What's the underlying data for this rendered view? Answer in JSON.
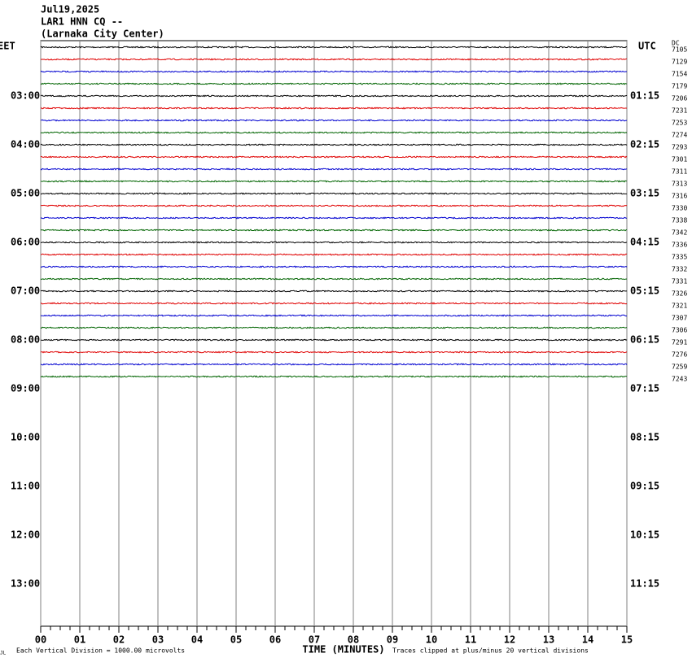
{
  "chart_data": {
    "type": "helicorder",
    "title_lines": [
      "Jul19,2025",
      "LAR1 HNN CQ --",
      "(Larnaka City Center)"
    ],
    "left_timezone": "EET",
    "right_timezone": "UTC",
    "right_header": "DC",
    "left_labels": [
      "03:00",
      "04:00",
      "05:00",
      "06:00",
      "07:00",
      "08:00",
      "09:00",
      "10:00",
      "11:00",
      "12:00",
      "13:00"
    ],
    "right_labels": [
      "01:15",
      "02:15",
      "03:15",
      "04:15",
      "05:15",
      "06:15",
      "07:15",
      "08:15",
      "09:15",
      "10:15",
      "11:15"
    ],
    "trace_colors": [
      "#000000",
      "#e00000",
      "#0000d0",
      "#006400"
    ],
    "trace_offsets": [
      7105,
      7129,
      7154,
      7179,
      7206,
      7231,
      7253,
      7274,
      7293,
      7301,
      7311,
      7313,
      7316,
      7330,
      7338,
      7342,
      7336,
      7335,
      7332,
      7331,
      7326,
      7321,
      7307,
      7306,
      7291,
      7276,
      7259,
      7243
    ],
    "xlim": [
      0,
      15
    ],
    "xticks": [
      {
        "value": 0,
        "label": "00"
      },
      {
        "value": 1,
        "label": "01"
      },
      {
        "value": 2,
        "label": "02"
      },
      {
        "value": 3,
        "label": "03"
      },
      {
        "value": 4,
        "label": "04"
      },
      {
        "value": 5,
        "label": "05"
      },
      {
        "value": 6,
        "label": "06"
      },
      {
        "value": 7,
        "label": "07"
      },
      {
        "value": 8,
        "label": "08"
      },
      {
        "value": 9,
        "label": "09"
      },
      10,
      11,
      12,
      13,
      14,
      15
    ],
    "x_label": "TIME (MINUTES)",
    "footnote_left": "Each Vertical Division = 1000.00 microvolts",
    "footnote_right": "Traces clipped at plus/minus 20 vertical divisions",
    "corner_mark": "JL"
  }
}
